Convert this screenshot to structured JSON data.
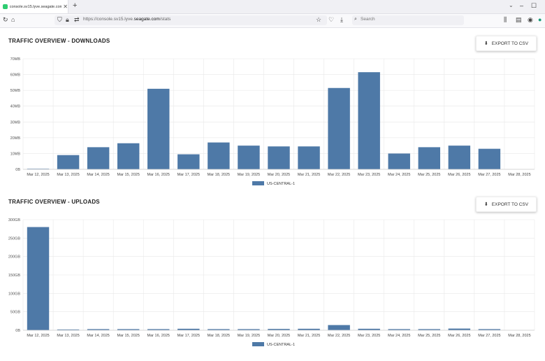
{
  "browser": {
    "tab_title": "console.sv15.lyve.seagate.com/",
    "tab_close": "✕",
    "new_tab": "+",
    "url_prefix": "https://console.sv15.lyve.",
    "url_domain": "seagate.com",
    "url_path": "/stats",
    "search_placeholder": "Search"
  },
  "sections": [
    {
      "title": "TRAFFIC OVERVIEW - DOWNLOADS",
      "export_label": "EXPORT TO CSV"
    },
    {
      "title": "TRAFFIC OVERVIEW - UPLOADS",
      "export_label": "EXPORT TO CSV"
    }
  ],
  "colors": {
    "bar": "#4e79a7",
    "grid": "#e8e8e8",
    "axis": "#cccccc"
  },
  "chart_data": [
    {
      "type": "bar",
      "title": "TRAFFIC OVERVIEW - DOWNLOADS",
      "categories": [
        "Mar 12, 2025",
        "Mar 13, 2025",
        "Mar 14, 2025",
        "Mar 15, 2025",
        "Mar 16, 2025",
        "Mar 17, 2025",
        "Mar 18, 2025",
        "Mar 19, 2025",
        "Mar 20, 2025",
        "Mar 21, 2025",
        "Mar 22, 2025",
        "Mar 23, 2025",
        "Mar 24, 2025",
        "Mar 25, 2025",
        "Mar 26, 2025",
        "Mar 27, 2025",
        "Mar 28, 2025"
      ],
      "series": [
        {
          "name": "US-CENTRAL-1",
          "values": [
            0.2,
            9,
            14,
            16.5,
            51,
            9.5,
            17,
            15,
            14.5,
            14.5,
            51.5,
            61.5,
            10,
            14,
            15,
            13,
            0
          ]
        }
      ],
      "unit": "MB",
      "ylim": [
        0,
        70
      ],
      "yticks": [
        0,
        10,
        20,
        30,
        40,
        50,
        60,
        70
      ],
      "ytick_labels": [
        "0B",
        "10MB",
        "20MB",
        "30MB",
        "40MB",
        "50MB",
        "60MB",
        "70MB"
      ],
      "grid": true,
      "legend": "bottom-center"
    },
    {
      "type": "bar",
      "title": "TRAFFIC OVERVIEW - UPLOADS",
      "categories": [
        "Mar 12, 2025",
        "Mar 13, 2025",
        "Mar 14, 2025",
        "Mar 15, 2025",
        "Mar 16, 2025",
        "Mar 17, 2025",
        "Mar 18, 2025",
        "Mar 19, 2025",
        "Mar 20, 2025",
        "Mar 21, 2025",
        "Mar 22, 2025",
        "Mar 23, 2025",
        "Mar 24, 2025",
        "Mar 25, 2025",
        "Mar 26, 2025",
        "Mar 27, 2025",
        "Mar 28, 2025"
      ],
      "series": [
        {
          "name": "US-CENTRAL-1",
          "values": [
            280,
            2,
            3,
            3,
            3,
            4,
            3,
            3,
            3.5,
            4,
            14,
            4,
            3,
            3,
            4.5,
            3,
            0
          ]
        }
      ],
      "unit": "GB",
      "ylim": [
        0,
        300
      ],
      "yticks": [
        0,
        50,
        100,
        150,
        200,
        250,
        300
      ],
      "ytick_labels": [
        "0B",
        "50GB",
        "100GB",
        "150GB",
        "200GB",
        "250GB",
        "300GB"
      ],
      "grid": true,
      "legend": "bottom-center"
    }
  ]
}
